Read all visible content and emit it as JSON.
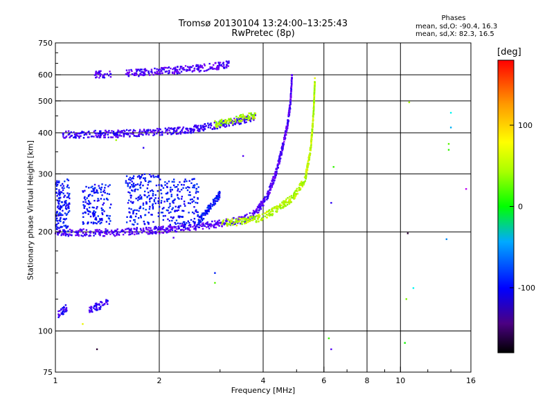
{
  "title": "Tromsø 20130104 13:24:00–13:25:43",
  "subtitle": "RwPretec (8p)",
  "phases": {
    "heading": "Phases",
    "o_line": "mean, sd,O: -90.4, 16.3",
    "x_line": "mean, sd,X:  82.3, 16.5"
  },
  "colorbar": {
    "unit": "[deg]",
    "range": [
      -180,
      180
    ],
    "tick_labels": [
      "100",
      "0",
      "-100"
    ],
    "tick_values": [
      100,
      0,
      -100
    ]
  },
  "chart_data": {
    "type": "scatter",
    "xlabel": "Frequency [MHz]",
    "ylabel": "Stationary phase Virtual Height [km]",
    "xscale": "log",
    "yscale": "log",
    "xlim": [
      1,
      16
    ],
    "ylim": [
      75,
      750
    ],
    "grid": true,
    "x_ticks": [
      1,
      2,
      4,
      6,
      8,
      10,
      16
    ],
    "x_tick_labels": [
      "1",
      "2",
      "4",
      "6",
      "8",
      "10",
      "16"
    ],
    "x_minor_ticks": [
      3,
      5,
      7,
      9,
      12,
      14
    ],
    "y_ticks": [
      75,
      100,
      200,
      300,
      400,
      500,
      600,
      750
    ],
    "y_tick_labels": [
      "75",
      "100",
      "200",
      "300",
      "400",
      "500",
      "600",
      "750"
    ],
    "y_minor_ticks": [
      125,
      150,
      175,
      225,
      250,
      350,
      450,
      550,
      650,
      700
    ],
    "x_gridlines": [
      1,
      2,
      4,
      6,
      8,
      10,
      16
    ],
    "y_gridlines": [
      100,
      200,
      300,
      400,
      500,
      600,
      750
    ],
    "series": [
      {
        "segments": [
          [
            1.0,
            200,
            1.07,
            199
          ],
          [
            1.07,
            199,
            1.5,
            199
          ],
          [
            1.5,
            199,
            2.0,
            203
          ],
          [
            2.0,
            203,
            2.5,
            207
          ],
          [
            2.5,
            207,
            3.0,
            212
          ],
          [
            3.0,
            212,
            3.5,
            218
          ],
          [
            3.5,
            218,
            3.8,
            228
          ],
          [
            3.8,
            228,
            4.1,
            255
          ],
          [
            4.1,
            255,
            4.35,
            300
          ],
          [
            4.35,
            300,
            4.55,
            360
          ],
          [
            4.55,
            360,
            4.7,
            420
          ],
          [
            4.7,
            420,
            4.8,
            490
          ],
          [
            4.8,
            490,
            4.85,
            600
          ]
        ],
        "phase": -110
      },
      {
        "segments": [
          [
            3.0,
            212,
            3.6,
            216
          ],
          [
            3.6,
            216,
            4.0,
            222
          ],
          [
            4.0,
            222,
            4.4,
            235
          ],
          [
            4.4,
            235,
            4.9,
            255
          ],
          [
            4.9,
            255,
            5.3,
            290
          ],
          [
            5.3,
            290,
            5.5,
            360
          ],
          [
            5.5,
            360,
            5.6,
            460
          ],
          [
            5.6,
            460,
            5.65,
            580
          ]
        ],
        "phase": 95
      },
      {
        "segments": [
          [
            1.05,
            395,
            1.5,
            397
          ],
          [
            1.5,
            397,
            2.0,
            402
          ],
          [
            2.0,
            402,
            2.5,
            410
          ],
          [
            2.5,
            410,
            3.0,
            423
          ],
          [
            3.0,
            423,
            3.5,
            438
          ],
          [
            3.5,
            438,
            3.8,
            448
          ]
        ],
        "phase": -105
      },
      {
        "segments": [
          [
            2.9,
            425,
            3.8,
            452
          ]
        ],
        "phase": 90
      },
      {
        "segments": [
          [
            1.3,
            600,
            1.45,
            605
          ],
          [
            1.6,
            605,
            2.0,
            615
          ],
          [
            2.0,
            615,
            2.5,
            625
          ],
          [
            2.5,
            625,
            3.0,
            640
          ],
          [
            3.0,
            640,
            3.2,
            648
          ]
        ],
        "phase": -110
      },
      {
        "segments": [
          [
            1.0,
            200,
            1.1,
            290
          ],
          [
            1.2,
            210,
            1.45,
            280
          ],
          [
            1.6,
            210,
            2.0,
            300
          ],
          [
            2.0,
            210,
            2.6,
            290
          ],
          [
            2.6,
            215,
            3.0,
            260
          ]
        ],
        "phase": -85
      },
      {
        "segments": [
          [
            1.02,
            112,
            1.08,
            118
          ],
          [
            1.25,
            116,
            1.42,
            122
          ]
        ],
        "phase": -100
      }
    ],
    "isolated_points": [
      [
        1.32,
        88,
        -160
      ],
      [
        1.2,
        105,
        110
      ],
      [
        1.5,
        380,
        90
      ],
      [
        2.9,
        140,
        70
      ],
      [
        2.9,
        150,
        -80
      ],
      [
        6.2,
        95,
        60
      ],
      [
        6.3,
        88,
        -110
      ],
      [
        6.4,
        315,
        60
      ],
      [
        6.3,
        245,
        -100
      ],
      [
        10.3,
        92,
        50
      ],
      [
        10.4,
        125,
        80
      ],
      [
        10.6,
        495,
        90
      ],
      [
        10.5,
        198,
        -160
      ],
      [
        10.9,
        135,
        -20
      ],
      [
        13.8,
        370,
        70
      ],
      [
        13.8,
        355,
        60
      ],
      [
        14.0,
        460,
        -20
      ],
      [
        14.0,
        415,
        -40
      ],
      [
        13.6,
        190,
        -50
      ],
      [
        15.5,
        270,
        -140
      ],
      [
        1.8,
        360,
        -100
      ],
      [
        3.5,
        340,
        -110
      ],
      [
        2.2,
        192,
        -110
      ]
    ]
  }
}
